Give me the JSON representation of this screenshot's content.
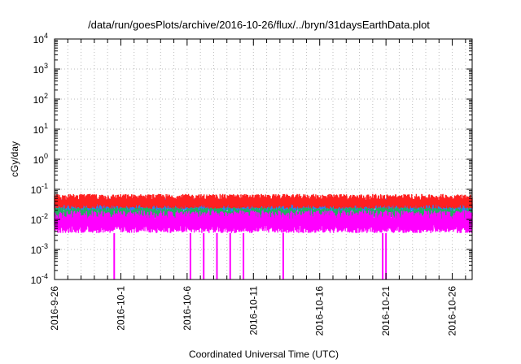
{
  "chart_data": {
    "type": "line",
    "title": "/data/run/goesPlots/archive/2016-10-26/flux/../bryn/31daysEarthData.plot",
    "xlabel": "Coordinated Universal Time (UTC)",
    "ylabel": "cGy/day",
    "yscale": "log",
    "ylim": [
      0.0001,
      10000
    ],
    "xlim": [
      "2016-09-26",
      "2016-10-27 12:00"
    ],
    "grid": true,
    "legend": "none",
    "y_ticks": [
      {
        "base": "10",
        "exp": "-4"
      },
      {
        "base": "10",
        "exp": "-3"
      },
      {
        "base": "10",
        "exp": "-2"
      },
      {
        "base": "10",
        "exp": "-1"
      },
      {
        "base": "10",
        "exp": "0"
      },
      {
        "base": "10",
        "exp": "1"
      },
      {
        "base": "10",
        "exp": "2"
      },
      {
        "base": "10",
        "exp": "3"
      },
      {
        "base": "10",
        "exp": "4"
      }
    ],
    "x_tick_labels": [
      "2016-9-26",
      "2016-10-1",
      "2016-10-6",
      "2016-10-11",
      "2016-10-16",
      "2016-10-21",
      "2016-10-26"
    ],
    "series": [
      {
        "color": "#ff2020",
        "band_low": 0.022,
        "band_high": 0.07
      },
      {
        "color": "#2a7fff",
        "band_low": 0.016,
        "band_high": 0.05
      },
      {
        "color": "#20b060",
        "band_low": 0.01,
        "band_high": 0.025
      },
      {
        "color": "#ff00ff",
        "band_low": 0.0035,
        "band_high": 0.02,
        "dropouts": [
          "2016-09-30 12:00",
          "2016-10-06 06:00",
          "2016-10-07 06:00",
          "2016-10-08 06:00",
          "2016-10-09 06:00",
          "2016-10-10 06:00",
          "2016-10-13 06:00",
          "2016-10-20 18:00",
          "2016-10-21 00:00"
        ]
      }
    ]
  }
}
